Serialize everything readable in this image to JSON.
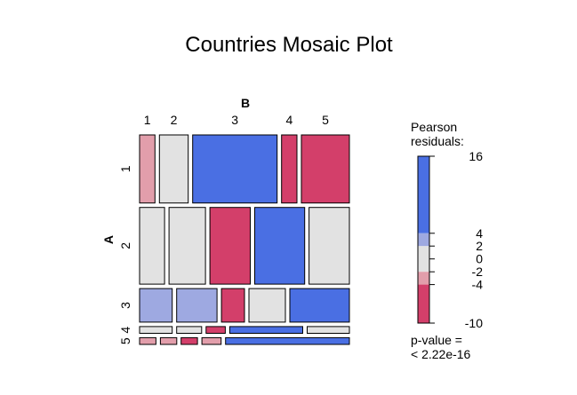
{
  "chart_data": {
    "type": "mosaic",
    "title": "Countries Mosaic Plot",
    "row_variable": "A",
    "col_variable": "B",
    "row_levels": [
      "1",
      "2",
      "3",
      "4",
      "5"
    ],
    "col_levels": [
      "1",
      "2",
      "3",
      "4",
      "5"
    ],
    "row_shares": [
      0.355,
      0.4,
      0.175,
      0.035,
      0.035
    ],
    "cells": [
      [
        {
          "share": 0.08,
          "residual": -3
        },
        {
          "share": 0.15,
          "residual": 0
        },
        {
          "share": 0.44,
          "residual": 16
        },
        {
          "share": 0.08,
          "residual": -5
        },
        {
          "share": 0.25,
          "residual": -6
        }
      ],
      [
        {
          "share": 0.13,
          "residual": 0
        },
        {
          "share": 0.19,
          "residual": 0
        },
        {
          "share": 0.21,
          "residual": -6
        },
        {
          "share": 0.26,
          "residual": 7
        },
        {
          "share": 0.21,
          "residual": 0
        }
      ],
      [
        {
          "share": 0.17,
          "residual": 2.5
        },
        {
          "share": 0.21,
          "residual": 2.5
        },
        {
          "share": 0.12,
          "residual": -5
        },
        {
          "share": 0.19,
          "residual": 0
        },
        {
          "share": 0.31,
          "residual": 8
        }
      ],
      [
        {
          "share": 0.17,
          "residual": 0
        },
        {
          "share": 0.13,
          "residual": 0
        },
        {
          "share": 0.1,
          "residual": -5
        },
        {
          "share": 0.38,
          "residual": 6
        },
        {
          "share": 0.22,
          "residual": 0
        }
      ],
      [
        {
          "share": 0.085,
          "residual": -3
        },
        {
          "share": 0.085,
          "residual": -3
        },
        {
          "share": 0.085,
          "residual": -4
        },
        {
          "share": 0.1,
          "residual": -3
        },
        {
          "share": 0.645,
          "residual": 6
        }
      ]
    ],
    "legend": {
      "title_line1": "Pearson",
      "title_line2": "residuals:",
      "range": [
        -10,
        16
      ],
      "ticks": [
        "16",
        "4",
        "2",
        "0",
        "-2",
        "-4",
        "-10"
      ],
      "tick_values": [
        16,
        4,
        2,
        0,
        -2,
        -4,
        -10
      ],
      "pvalue_line1": "p-value =",
      "pvalue_line2": "< 2.22e-16"
    },
    "colors": {
      "strong_pos": "#4a6fe3",
      "mild_pos": "#9ea9e1",
      "neutral": "#e2e2e2",
      "mild_neg": "#e29eab",
      "strong_neg": "#d33f6a"
    }
  }
}
